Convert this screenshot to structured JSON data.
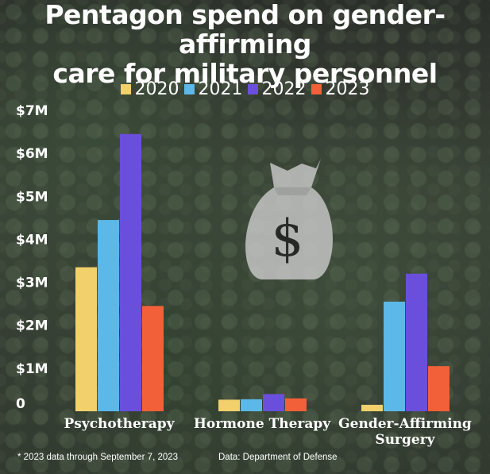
{
  "title_line1": "Pentagon spend on gender-affirming",
  "title_line2": "care for military personnel",
  "footnote": "* 2023 data through September 7, 2023",
  "source": "Data: Department of Defense",
  "icon": "money-bag-icon",
  "chart_data": {
    "type": "bar",
    "categories": [
      [
        "Psychotherapy"
      ],
      [
        "Hormone Therapy"
      ],
      [
        "Gender-Affirming",
        "Surgery"
      ]
    ],
    "series": [
      {
        "name": "2020",
        "color": "#f2d06b",
        "values": [
          3.35,
          0.27,
          0.15
        ]
      },
      {
        "name": "2021",
        "color": "#5bb8e8",
        "values": [
          4.45,
          0.28,
          2.55
        ]
      },
      {
        "name": "2022",
        "color": "#6a4fdc",
        "values": [
          6.45,
          0.4,
          3.2
        ]
      },
      {
        "name": "2023",
        "color": "#f2603a",
        "values": [
          2.45,
          0.3,
          1.05
        ]
      }
    ],
    "yticks": [
      "0",
      "$1M",
      "$2M",
      "$3M",
      "$4M",
      "$5M",
      "$6M",
      "$7M"
    ],
    "ylim": [
      0,
      7
    ],
    "legend": "top-center",
    "grid": false
  }
}
